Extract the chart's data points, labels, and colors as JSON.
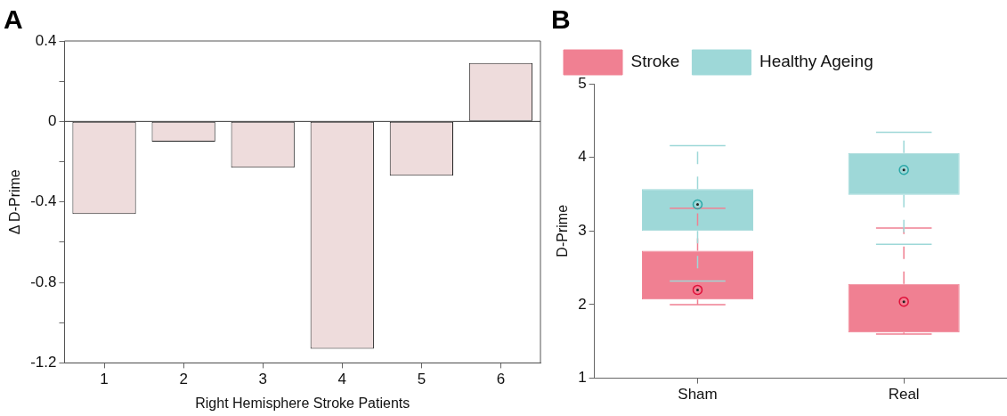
{
  "chart_data": [
    {
      "type": "bar",
      "title": "A",
      "xlabel": "Right Hemisphere Stroke Patients",
      "ylabel": "Δ D-Prime",
      "categories": [
        "1",
        "2",
        "3",
        "4",
        "5",
        "6"
      ],
      "values": [
        -0.46,
        -0.1,
        -0.23,
        -1.13,
        -0.27,
        0.29
      ],
      "color": "#eedcdc",
      "ylim": [
        -1.2,
        0.4
      ],
      "yticks": [
        -1.2,
        {
          "value": -1.0,
          "label": null
        },
        -0.8,
        {
          "value": -0.6,
          "label": null
        },
        -0.4,
        {
          "value": -0.2,
          "label": null
        },
        0,
        {
          "value": 0.2,
          "label": null
        },
        0.4
      ]
    },
    {
      "type": "box",
      "title": "B",
      "ylabel": "D-Prime",
      "categories": [
        "Sham",
        "Real"
      ],
      "legend": "top left",
      "grid": false,
      "ylim": [
        1,
        5
      ],
      "yticks": [
        1,
        2,
        3,
        4,
        5
      ],
      "series": [
        {
          "name": "Stroke",
          "color": "#f08092",
          "boxes": [
            {
              "low": 2.0,
              "q1": 2.07,
              "median": 2.2,
              "q3": 2.73,
              "high": 3.31
            },
            {
              "low": 1.6,
              "q1": 1.62,
              "median": 2.04,
              "q3": 2.28,
              "high": 3.04
            }
          ]
        },
        {
          "name": "Healthy Ageing",
          "color": "#9ed8d8",
          "boxes": [
            {
              "low": 2.32,
              "q1": 3.0,
              "median": 3.36,
              "q3": 3.57,
              "high": 4.16
            },
            {
              "low": 2.82,
              "q1": 3.49,
              "median": 3.83,
              "q3": 4.06,
              "high": 4.34
            }
          ]
        }
      ]
    }
  ]
}
